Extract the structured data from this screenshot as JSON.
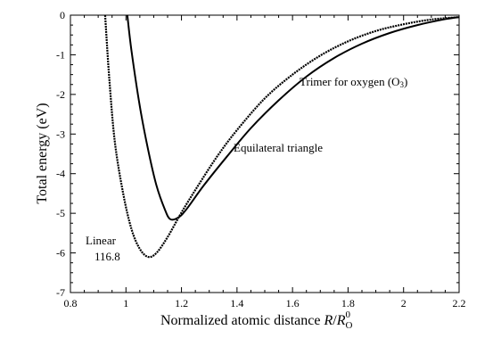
{
  "chart_data": {
    "type": "line",
    "title": "",
    "xlabel": "Normalized atomic distance",
    "xlabel_math": {
      "var": "R",
      "slash": "/",
      "denom_var": "R",
      "denom_sub": "O",
      "denom_sup": "0"
    },
    "ylabel": "Total energy (eV)",
    "xlim": [
      0.8,
      2.2
    ],
    "ylim": [
      -7,
      0
    ],
    "x_ticks": [
      "0.8",
      "1",
      "1.2",
      "1.4",
      "1.6",
      "1.8",
      "2",
      "2.2"
    ],
    "y_ticks": [
      "0",
      "-1",
      "-2",
      "-3",
      "-4",
      "-5",
      "-6",
      "-7"
    ],
    "grid": false,
    "series": [
      {
        "name": "Equilateral triangle",
        "style": "solid",
        "points": [
          [
            1.005,
            0
          ],
          [
            1.02,
            -0.9
          ],
          [
            1.05,
            -2.3
          ],
          [
            1.08,
            -3.4
          ],
          [
            1.11,
            -4.3
          ],
          [
            1.14,
            -4.9
          ],
          [
            1.16,
            -5.15
          ],
          [
            1.19,
            -5.1
          ],
          [
            1.22,
            -4.88
          ],
          [
            1.28,
            -4.3
          ],
          [
            1.36,
            -3.6
          ],
          [
            1.45,
            -2.85
          ],
          [
            1.55,
            -2.15
          ],
          [
            1.65,
            -1.55
          ],
          [
            1.75,
            -1.08
          ],
          [
            1.85,
            -0.72
          ],
          [
            1.95,
            -0.45
          ],
          [
            2.05,
            -0.25
          ],
          [
            2.15,
            -0.1
          ],
          [
            2.2,
            -0.05
          ]
        ]
      },
      {
        "name": "Linear 116.8",
        "style": "dotted",
        "points": [
          [
            0.925,
            0
          ],
          [
            0.94,
            -1.6
          ],
          [
            0.96,
            -3.2
          ],
          [
            0.99,
            -4.5
          ],
          [
            1.02,
            -5.4
          ],
          [
            1.05,
            -5.9
          ],
          [
            1.08,
            -6.1
          ],
          [
            1.11,
            -6.0
          ],
          [
            1.15,
            -5.6
          ],
          [
            1.2,
            -4.98
          ],
          [
            1.26,
            -4.3
          ],
          [
            1.33,
            -3.55
          ],
          [
            1.4,
            -2.9
          ],
          [
            1.5,
            -2.1
          ],
          [
            1.6,
            -1.5
          ],
          [
            1.7,
            -1.02
          ],
          [
            1.8,
            -0.66
          ],
          [
            1.9,
            -0.4
          ],
          [
            2.0,
            -0.23
          ],
          [
            2.1,
            -0.11
          ],
          [
            2.2,
            -0.05
          ]
        ]
      }
    ],
    "annotations": {
      "trimer": "Trimer for oxygen (O",
      "trimer_sub": "3",
      "trimer_close": ")",
      "equilateral": "Equilateral triangle",
      "linear": "Linear",
      "linear_angle": "116.8"
    }
  }
}
